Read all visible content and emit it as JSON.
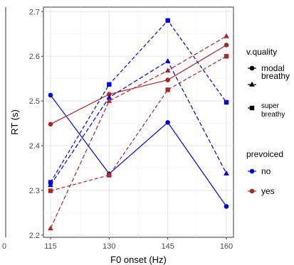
{
  "chart_data": {
    "type": "line",
    "xlabel": "F0 onset (Hz)",
    "ylabel": "RT (s)",
    "categories": [
      "115",
      "130",
      "145",
      "160"
    ],
    "ylim": [
      2.195,
      2.71
    ],
    "yticks": [
      "2.2",
      "2.3",
      "2.4",
      "2.5",
      "2.6",
      "2.7"
    ],
    "grid": true,
    "left_panel_tick": "0",
    "legend": {
      "placement": "right",
      "groups": [
        {
          "title": "v.quality",
          "items": [
            {
              "label": "modal",
              "shape": "circle",
              "dash": "solid"
            },
            {
              "label": "breathy",
              "shape": "triangle",
              "dash": "long-dash"
            },
            {
              "label": "super breathy",
              "shape": "square",
              "dash": "dash"
            }
          ]
        },
        {
          "title": "prevoiced",
          "items": [
            {
              "label": "no",
              "color": "#0000e0"
            },
            {
              "label": "yes",
              "color": "#a52a2a"
            }
          ]
        }
      ]
    },
    "colors": {
      "no": "#0000e0",
      "yes": "#a52a2a"
    },
    "series": [
      {
        "vquality": "modal",
        "prevoiced": "no",
        "values": [
          2.513,
          2.337,
          2.452,
          2.264
        ]
      },
      {
        "vquality": "modal",
        "prevoiced": "yes",
        "values": [
          2.448,
          2.515,
          2.547,
          2.625
        ]
      },
      {
        "vquality": "breathy",
        "prevoiced": "no",
        "values": [
          2.312,
          2.508,
          2.589,
          2.338
        ]
      },
      {
        "vquality": "breathy",
        "prevoiced": "yes",
        "values": [
          2.215,
          2.5,
          2.568,
          2.645
        ]
      },
      {
        "vquality": "super breathy",
        "prevoiced": "no",
        "values": [
          2.318,
          2.537,
          2.68,
          2.497
        ]
      },
      {
        "vquality": "super breathy",
        "prevoiced": "yes",
        "values": [
          2.299,
          2.334,
          2.525,
          2.6
        ]
      }
    ]
  }
}
